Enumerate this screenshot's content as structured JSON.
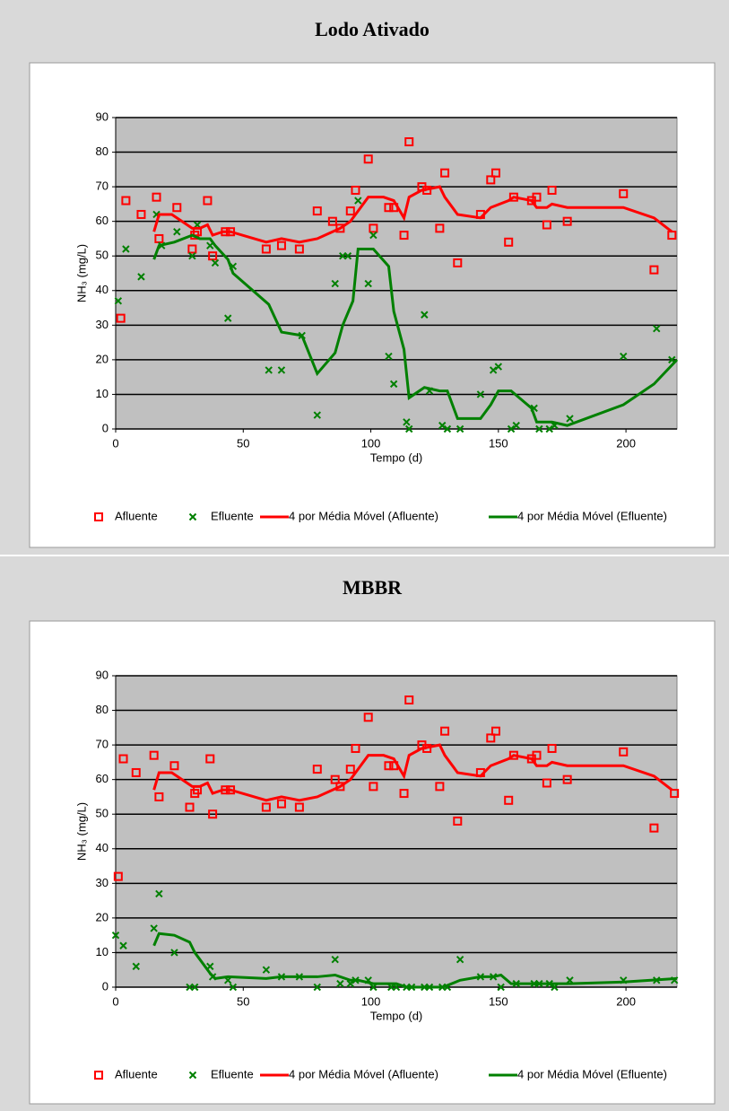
{
  "chart_data": [
    {
      "type": "scatter",
      "title": "Lodo Ativado",
      "xlabel": "Tempo (d)",
      "ylabel": "NH₃ (mg/L)",
      "xlim": [
        0,
        220
      ],
      "ylim": [
        0,
        90
      ],
      "xticks": [
        0,
        50,
        100,
        150,
        200
      ],
      "yticks": [
        0,
        10,
        20,
        30,
        40,
        50,
        60,
        70,
        80,
        90
      ],
      "grid": true,
      "series": [
        {
          "name": "Afluente",
          "kind": "points",
          "marker": "square",
          "color": "#ff0000",
          "x": [
            2,
            4,
            10,
            16,
            17,
            24,
            30,
            31,
            32,
            36,
            38,
            43,
            45,
            59,
            65,
            72,
            79,
            85,
            88,
            92,
            94,
            99,
            101,
            107,
            109,
            113,
            115,
            120,
            122,
            127,
            129,
            134,
            143,
            147,
            149,
            154,
            156,
            163,
            165,
            169,
            171,
            177,
            199,
            211,
            218
          ],
          "values": [
            32,
            66,
            62,
            67,
            55,
            64,
            52,
            56,
            57,
            66,
            50,
            57,
            57,
            52,
            53,
            52,
            63,
            60,
            58,
            63,
            69,
            78,
            58,
            64,
            64,
            56,
            83,
            70,
            69,
            58,
            74,
            48,
            62,
            72,
            74,
            54,
            67,
            66,
            67,
            59,
            69,
            60,
            68,
            46,
            56
          ]
        },
        {
          "name": "Efluente",
          "kind": "points",
          "marker": "x",
          "color": "#008000",
          "x": [
            1,
            4,
            10,
            16,
            18,
            24,
            30,
            32,
            37,
            39,
            44,
            46,
            60,
            65,
            73,
            79,
            86,
            89,
            91,
            95,
            99,
            101,
            107,
            109,
            114,
            115,
            121,
            123,
            128,
            130,
            135,
            143,
            148,
            150,
            155,
            157,
            164,
            166,
            170,
            172,
            178,
            199,
            212,
            218
          ],
          "values": [
            37,
            52,
            44,
            62,
            53,
            57,
            50,
            59,
            53,
            48,
            32,
            47,
            17,
            17,
            27,
            4,
            42,
            50,
            50,
            66,
            42,
            56,
            21,
            13,
            2,
            0,
            33,
            11,
            1,
            0,
            0,
            10,
            17,
            18,
            0,
            1,
            6,
            0,
            0,
            1,
            3,
            21,
            29,
            20
          ]
        },
        {
          "name": "4 por Média Móvel (Afluente)",
          "kind": "line",
          "color": "#ff0000",
          "x": [
            15,
            17,
            22,
            28,
            30,
            33,
            36,
            38,
            42,
            45,
            59,
            65,
            72,
            79,
            85,
            88,
            92,
            94,
            99,
            105,
            109,
            113,
            115,
            120,
            127,
            129,
            134,
            143,
            147,
            154,
            156,
            163,
            165,
            169,
            171,
            177,
            199,
            211,
            218
          ],
          "values": [
            57,
            62,
            62,
            59,
            58,
            58,
            59,
            56,
            57,
            57,
            54,
            55,
            54,
            55,
            57,
            58,
            60,
            62,
            67,
            67,
            66,
            61,
            67,
            69,
            70,
            67,
            62,
            61,
            64,
            66,
            67,
            66,
            64,
            64,
            65,
            64,
            64,
            61,
            57
          ]
        },
        {
          "name": "4 por Média Móvel (Efluente)",
          "kind": "line",
          "color": "#008000",
          "x": [
            15,
            17,
            23,
            30,
            33,
            37,
            39,
            44,
            46,
            60,
            65,
            73,
            79,
            86,
            89,
            93,
            95,
            101,
            107,
            109,
            113,
            115,
            121,
            127,
            130,
            134,
            143,
            147,
            150,
            155,
            163,
            165,
            171,
            177,
            199,
            211,
            220
          ],
          "values": [
            49,
            53,
            54,
            56,
            55,
            55,
            53,
            49,
            45,
            36,
            28,
            27,
            16,
            22,
            30,
            37,
            52,
            52,
            47,
            34,
            23,
            9,
            12,
            11,
            11,
            3,
            3,
            7,
            11,
            11,
            6,
            2,
            2,
            1,
            7,
            13,
            20
          ]
        }
      ]
    },
    {
      "type": "scatter",
      "title": "MBBR",
      "xlabel": "Tempo (d)",
      "ylabel": "NH₃ (mg/L)",
      "xlim": [
        0,
        220
      ],
      "ylim": [
        0,
        90
      ],
      "xticks": [
        0,
        50,
        100,
        150,
        200
      ],
      "yticks": [
        0,
        10,
        20,
        30,
        40,
        50,
        60,
        70,
        80,
        90
      ],
      "grid": true,
      "series": [
        {
          "name": "Afluente",
          "kind": "points",
          "marker": "square",
          "color": "#ff0000",
          "x": [
            1,
            3,
            8,
            15,
            17,
            23,
            29,
            31,
            32,
            37,
            38,
            43,
            45,
            59,
            65,
            72,
            79,
            86,
            88,
            92,
            94,
            99,
            101,
            107,
            109,
            113,
            115,
            120,
            122,
            127,
            129,
            134,
            143,
            147,
            149,
            154,
            156,
            163,
            165,
            169,
            171,
            177,
            199,
            211,
            219
          ],
          "values": [
            32,
            66,
            62,
            67,
            55,
            64,
            52,
            56,
            57,
            66,
            50,
            57,
            57,
            52,
            53,
            52,
            63,
            60,
            58,
            63,
            69,
            78,
            58,
            64,
            64,
            56,
            83,
            70,
            69,
            58,
            74,
            48,
            62,
            72,
            74,
            54,
            67,
            66,
            67,
            59,
            69,
            60,
            68,
            46,
            56
          ]
        },
        {
          "name": "Efluente",
          "kind": "points",
          "marker": "x",
          "color": "#008000",
          "x": [
            0,
            3,
            8,
            15,
            17,
            23,
            29,
            31,
            37,
            38,
            44,
            46,
            59,
            65,
            72,
            79,
            86,
            88,
            92,
            94,
            99,
            101,
            108,
            110,
            114,
            116,
            121,
            123,
            128,
            130,
            135,
            143,
            148,
            151,
            157,
            164,
            166,
            170,
            172,
            178,
            199,
            212,
            219
          ],
          "values": [
            15,
            12,
            6,
            17,
            27,
            10,
            0,
            0,
            6,
            3,
            2,
            0,
            5,
            3,
            3,
            0,
            8,
            1,
            1,
            2,
            2,
            0,
            0,
            0,
            0,
            0,
            0,
            0,
            0,
            0,
            8,
            3,
            3,
            0,
            1,
            1,
            1,
            1,
            0,
            2,
            2,
            2,
            2
          ]
        },
        {
          "name": "4 por Média Móvel (Afluente)",
          "kind": "line",
          "color": "#ff0000",
          "x": [
            15,
            17,
            22,
            28,
            30,
            33,
            36,
            38,
            42,
            45,
            59,
            65,
            72,
            79,
            85,
            88,
            92,
            94,
            99,
            105,
            109,
            113,
            115,
            120,
            127,
            129,
            134,
            143,
            147,
            154,
            156,
            163,
            165,
            169,
            171,
            177,
            199,
            211,
            218
          ],
          "values": [
            57,
            62,
            62,
            59,
            58,
            58,
            59,
            56,
            57,
            57,
            54,
            55,
            54,
            55,
            57,
            58,
            60,
            62,
            67,
            67,
            66,
            61,
            67,
            69,
            70,
            67,
            62,
            61,
            64,
            66,
            67,
            66,
            64,
            64,
            65,
            64,
            64,
            61,
            57
          ]
        },
        {
          "name": "4 por Média Móvel (Efluente)",
          "kind": "line",
          "color": "#008000",
          "x": [
            15,
            17,
            23,
            29,
            31,
            37,
            39,
            44,
            59,
            65,
            72,
            79,
            86,
            88,
            92,
            95,
            101,
            108,
            110,
            114,
            121,
            128,
            130,
            135,
            143,
            148,
            151,
            155,
            164,
            170,
            177,
            199,
            220
          ],
          "values": [
            12,
            15.5,
            15,
            13,
            10,
            4,
            2.5,
            3,
            2.5,
            3,
            3,
            3,
            3.5,
            3,
            2,
            2,
            1,
            1,
            1,
            0,
            0,
            0,
            0.5,
            2,
            3,
            3,
            3.5,
            1,
            1,
            1,
            1,
            1.5,
            2.5
          ]
        }
      ]
    }
  ]
}
